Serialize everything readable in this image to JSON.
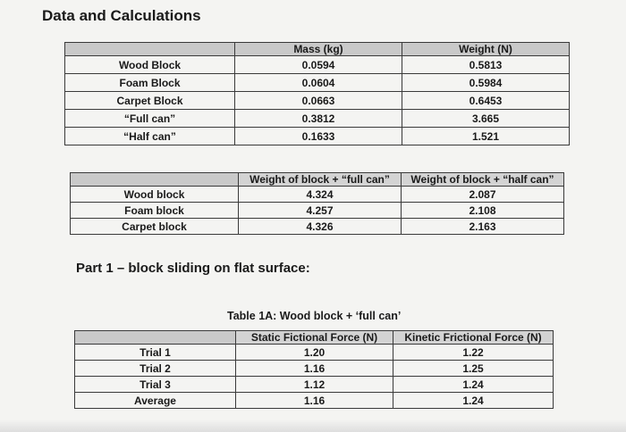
{
  "title": "Data and Calculations",
  "table1": {
    "headers": [
      "",
      "Mass (kg)",
      "Weight (N)"
    ],
    "rows": [
      [
        "Wood Block",
        "0.0594",
        "0.5813"
      ],
      [
        "Foam Block",
        "0.0604",
        "0.5984"
      ],
      [
        "Carpet Block",
        "0.0663",
        "0.6453"
      ],
      [
        "“Full can”",
        "0.3812",
        "3.665"
      ],
      [
        "“Half can”",
        "0.1633",
        "1.521"
      ]
    ]
  },
  "table2": {
    "headers": [
      "",
      "Weight of block + “full can”",
      "Weight of block + “half can”"
    ],
    "rows": [
      [
        "Wood block",
        "4.324",
        "2.087"
      ],
      [
        "Foam block",
        "4.257",
        "2.108"
      ],
      [
        "Carpet block",
        "4.326",
        "2.163"
      ]
    ]
  },
  "part1_title": "Part 1 – block sliding on flat surface:",
  "table3": {
    "caption": "Table 1A: Wood block + ‘full can’",
    "headers": [
      "",
      "Static Fictional Force (N)",
      "Kinetic Frictional Force (N)"
    ],
    "rows": [
      [
        "Trial 1",
        "1.20",
        "1.22"
      ],
      [
        "Trial 2",
        "1.16",
        "1.25"
      ],
      [
        "Trial 3",
        "1.12",
        "1.24"
      ],
      [
        "Average",
        "1.16",
        "1.24"
      ]
    ]
  }
}
